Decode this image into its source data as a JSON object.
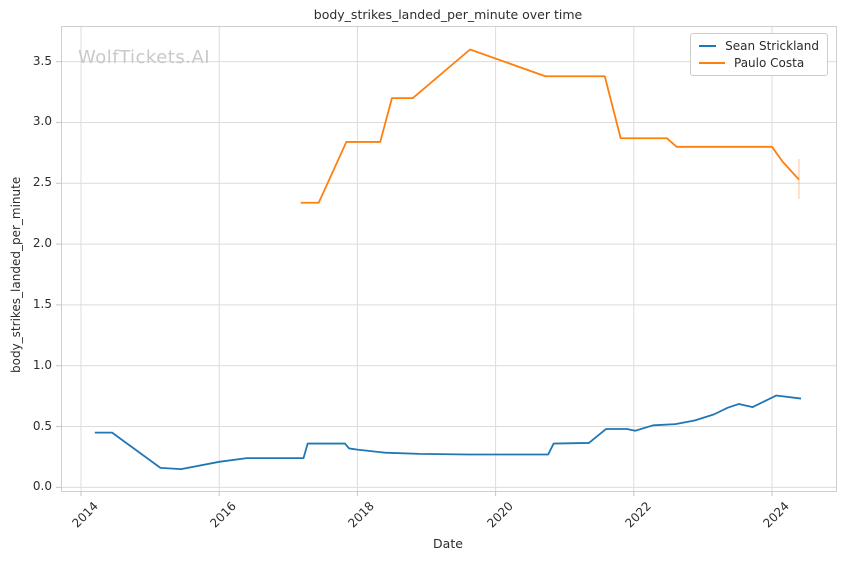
{
  "chart_data": {
    "type": "line",
    "title": "body_strikes_landed_per_minute over time",
    "xlabel": "Date",
    "ylabel": "body_strikes_landed_per_minute",
    "watermark": "WolfTickets.AI",
    "grid": true,
    "legend_position": "top-right",
    "xlim": [
      2013.725,
      2024.926
    ],
    "ylim": [
      -0.03,
      3.785
    ],
    "xtick_labels": [
      "2014",
      "2016",
      "2018",
      "2020",
      "2022",
      "2024"
    ],
    "ytick_labels": [
      "0.0",
      "0.5",
      "1.0",
      "1.5",
      "2.0",
      "2.5",
      "3.0",
      "3.5"
    ],
    "colors": {
      "grid": "#dcdcdc",
      "tick": "#c6c6c6",
      "text": "#2d2d2d",
      "watermark": "#c9c9c9"
    },
    "series": [
      {
        "name": "Sean Strickland",
        "color": "#1f77b4",
        "points": [
          [
            2014.2,
            0.45
          ],
          [
            2014.45,
            0.45
          ],
          [
            2015.15,
            0.16
          ],
          [
            2015.45,
            0.15
          ],
          [
            2016.0,
            0.21
          ],
          [
            2016.4,
            0.24
          ],
          [
            2017.22,
            0.24
          ],
          [
            2017.28,
            0.36
          ],
          [
            2017.82,
            0.36
          ],
          [
            2017.88,
            0.32
          ],
          [
            2018.0,
            0.31
          ],
          [
            2018.4,
            0.285
          ],
          [
            2018.9,
            0.275
          ],
          [
            2019.6,
            0.27
          ],
          [
            2020.76,
            0.27
          ],
          [
            2020.84,
            0.36
          ],
          [
            2021.35,
            0.365
          ],
          [
            2021.6,
            0.48
          ],
          [
            2021.9,
            0.48
          ],
          [
            2022.02,
            0.465
          ],
          [
            2022.28,
            0.51
          ],
          [
            2022.6,
            0.52
          ],
          [
            2022.88,
            0.55
          ],
          [
            2023.16,
            0.6
          ],
          [
            2023.36,
            0.655
          ],
          [
            2023.52,
            0.685
          ],
          [
            2023.72,
            0.66
          ],
          [
            2024.06,
            0.755
          ],
          [
            2024.42,
            0.73
          ]
        ]
      },
      {
        "name": "Paulo Costa",
        "color": "#ff7f0e",
        "points": [
          [
            2017.18,
            2.34
          ],
          [
            2017.44,
            2.34
          ],
          [
            2017.84,
            2.84
          ],
          [
            2018.33,
            2.84
          ],
          [
            2018.5,
            3.2
          ],
          [
            2018.8,
            3.2
          ],
          [
            2019.63,
            3.6
          ],
          [
            2020.72,
            3.38
          ],
          [
            2021.58,
            3.38
          ],
          [
            2021.81,
            2.87
          ],
          [
            2022.48,
            2.87
          ],
          [
            2022.62,
            2.8
          ],
          [
            2024.0,
            2.8
          ],
          [
            2024.15,
            2.68
          ],
          [
            2024.39,
            2.53
          ]
        ],
        "error_bar": {
          "x": 2024.39,
          "low": 2.37,
          "high": 2.7
        }
      }
    ]
  }
}
